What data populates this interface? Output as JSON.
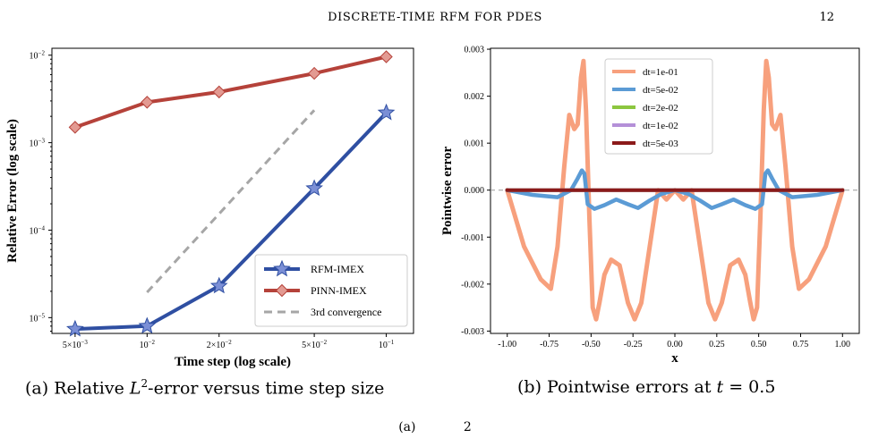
{
  "header": {
    "running_head": "DISCRETE-TIME RFM FOR PDES",
    "page_number": "12"
  },
  "captions": {
    "a_label": "(a)",
    "a_text_1": "Relative ",
    "a_math": "L",
    "a_sup": "2",
    "a_text_2": "-error versus time step size",
    "b_label": "(b)",
    "b_text": "Pointwise errors at ",
    "b_math": "t",
    "b_value": " = 0.5"
  },
  "bottom_fragment": "(a)            2",
  "chart_data": [
    {
      "type": "line",
      "xscale": "log",
      "yscale": "log",
      "xlabel": "Time step (log scale)",
      "ylabel": "Relative Error (log scale)",
      "xlim": [
        0.004,
        0.13
      ],
      "ylim": [
        6.6e-06,
        0.012
      ],
      "xticks": [
        {
          "value": 0.005,
          "mant": "5×10",
          "exp": "−3"
        },
        {
          "value": 0.01,
          "mant": "10",
          "exp": "−2"
        },
        {
          "value": 0.02,
          "mant": "2×10",
          "exp": "−2"
        },
        {
          "value": 0.05,
          "mant": "5×10",
          "exp": "−2"
        },
        {
          "value": 0.1,
          "mant": "10",
          "exp": "−1"
        }
      ],
      "yticks": [
        {
          "value": 1e-05,
          "mant": "10",
          "exp": "−5"
        },
        {
          "value": 0.0001,
          "mant": "10",
          "exp": "−4"
        },
        {
          "value": 0.001,
          "mant": "10",
          "exp": "−3"
        },
        {
          "value": 0.01,
          "mant": "10",
          "exp": "−2"
        }
      ],
      "legend_position": "lower-right",
      "series": [
        {
          "name": "RFM-IMEX",
          "color": "#2f4fa2",
          "marker": "star",
          "marker_fill": "#7b8fd6",
          "x": [
            0.005,
            0.01,
            0.02,
            0.05,
            0.1
          ],
          "y": [
            7.4e-06,
            8e-06,
            2.3e-05,
            0.0003,
            0.0022
          ]
        },
        {
          "name": "PINN-IMEX",
          "color": "#b5423a",
          "marker": "diamond",
          "marker_fill": "#e39a92",
          "x": [
            0.005,
            0.01,
            0.02,
            0.05,
            0.1
          ],
          "y": [
            0.0015,
            0.0029,
            0.0038,
            0.0062,
            0.0096
          ]
        },
        {
          "name": "3rd convergence",
          "color": "#a6a6a6",
          "dashed": true,
          "x": [
            0.01,
            0.05
          ],
          "y": [
            1.95e-05,
            0.00235
          ]
        }
      ]
    },
    {
      "type": "line",
      "xlabel": "x",
      "ylabel": "Pointwise error",
      "xlim": [
        -1.1,
        1.1
      ],
      "ylim": [
        -0.00305,
        0.00302
      ],
      "xticks": [
        -1.0,
        -0.75,
        -0.5,
        -0.25,
        0.0,
        0.25,
        0.5,
        0.75,
        1.0
      ],
      "xticklabels": [
        "-1.00",
        "-0.75",
        "-0.50",
        "-0.25",
        "0.00",
        "0.25",
        "0.50",
        "0.75",
        "1.00"
      ],
      "yticks": [
        -0.003,
        -0.002,
        -0.001,
        0.0,
        0.001,
        0.002,
        0.003
      ],
      "yticklabels": [
        "-0.003",
        "-0.002",
        "-0.001",
        "0.000",
        "0.001",
        "0.002",
        "0.003"
      ],
      "zero_line": true,
      "legend_position": "top-center",
      "series": [
        {
          "name": "dt=1e-01",
          "color": "#f7a07d",
          "x": [
            -1.0,
            -0.9,
            -0.8,
            -0.74,
            -0.7,
            -0.66,
            -0.63,
            -0.6,
            -0.58,
            -0.56,
            -0.545,
            -0.53,
            -0.51,
            -0.49,
            -0.47,
            -0.45,
            -0.42,
            -0.38,
            -0.33,
            -0.28,
            -0.24,
            -0.2,
            -0.15,
            -0.1,
            -0.05,
            0.0,
            0.05,
            0.1,
            0.15,
            0.2,
            0.24,
            0.28,
            0.33,
            0.38,
            0.42,
            0.45,
            0.47,
            0.49,
            0.51,
            0.53,
            0.545,
            0.56,
            0.58,
            0.6,
            0.63,
            0.66,
            0.7,
            0.74,
            0.8,
            0.9,
            1.0
          ],
          "y": [
            0.0,
            -0.0012,
            -0.0019,
            -0.0021,
            -0.0012,
            0.0005,
            0.0016,
            0.0013,
            0.0014,
            0.0024,
            0.00275,
            0.0017,
            -0.0006,
            -0.0025,
            -0.00275,
            -0.0024,
            -0.0018,
            -0.00148,
            -0.0016,
            -0.0024,
            -0.00275,
            -0.0024,
            -0.0012,
            0.0,
            -0.0002,
            0.0,
            -0.0002,
            0.0,
            -0.0012,
            -0.0024,
            -0.00275,
            -0.0024,
            -0.0016,
            -0.00148,
            -0.0018,
            -0.0024,
            -0.00275,
            -0.0025,
            -0.0006,
            0.0017,
            0.00275,
            0.0024,
            0.0014,
            0.0013,
            0.0016,
            0.0005,
            -0.0012,
            -0.0021,
            -0.0019,
            -0.0012,
            0.0
          ]
        },
        {
          "name": "dt=5e-02",
          "color": "#5b9bd5",
          "x": [
            -1.0,
            -0.85,
            -0.7,
            -0.62,
            -0.58,
            -0.555,
            -0.54,
            -0.52,
            -0.48,
            -0.42,
            -0.35,
            -0.28,
            -0.22,
            -0.15,
            -0.08,
            0.0,
            0.08,
            0.15,
            0.22,
            0.28,
            0.35,
            0.42,
            0.48,
            0.52,
            0.54,
            0.555,
            0.58,
            0.62,
            0.7,
            0.85,
            1.0
          ],
          "y": [
            0.0,
            -0.0001,
            -0.00015,
            0.0,
            0.00025,
            0.00042,
            0.00035,
            -0.0003,
            -0.0004,
            -0.00032,
            -0.0002,
            -0.0003,
            -0.00038,
            -0.00022,
            -8e-05,
            0.0,
            -8e-05,
            -0.00022,
            -0.00038,
            -0.0003,
            -0.0002,
            -0.00032,
            -0.0004,
            -0.0003,
            0.00035,
            0.00042,
            0.00025,
            0.0,
            -0.00015,
            -0.0001,
            0.0
          ]
        },
        {
          "name": "dt=2e-02",
          "color": "#8cc63f",
          "x": [
            -1.0,
            1.0
          ],
          "y": [
            0.0,
            0.0
          ]
        },
        {
          "name": "dt=1e-02",
          "color": "#b490d8",
          "x": [
            -1.0,
            1.0
          ],
          "y": [
            0.0,
            0.0
          ]
        },
        {
          "name": "dt=5e-03",
          "color": "#8b1a1a",
          "x": [
            -1.0,
            1.0
          ],
          "y": [
            0.0,
            0.0
          ]
        }
      ]
    }
  ]
}
